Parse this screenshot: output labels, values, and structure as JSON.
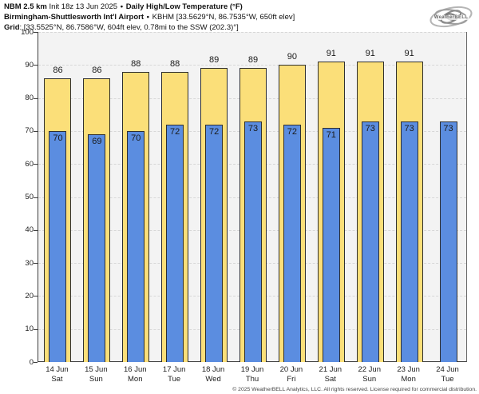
{
  "header": {
    "line1": {
      "model": "NBM 2.5 km",
      "init": "Init 18z 13 Jun 2025",
      "sep": "•",
      "product": "Daily High/Low Temperature (°F)"
    },
    "line2": {
      "station": "Birmingham-Shuttlesworth Int'l Airport",
      "sep": "•",
      "meta": "KBHM [33.5629°N, 86.7535°W, 650ft elev]"
    },
    "line3": {
      "label": "Grid",
      "value": ": [33.5525°N, 86.7586°W, 604ft elev, 0.78mi to the SSW (202.3)°]"
    }
  },
  "logo": {
    "text": "WeatherBELL"
  },
  "chart_data": {
    "type": "bar",
    "title": "NBM 2.5 km Daily High/Low Temperature (°F) — Birmingham-Shuttlesworth Int'l Airport",
    "categories": [
      {
        "date": "14 Jun",
        "day": "Sat"
      },
      {
        "date": "15 Jun",
        "day": "Sun"
      },
      {
        "date": "16 Jun",
        "day": "Mon"
      },
      {
        "date": "17 Jun",
        "day": "Tue"
      },
      {
        "date": "18 Jun",
        "day": "Wed"
      },
      {
        "date": "19 Jun",
        "day": "Thu"
      },
      {
        "date": "20 Jun",
        "day": "Fri"
      },
      {
        "date": "21 Jun",
        "day": "Sat"
      },
      {
        "date": "22 Jun",
        "day": "Sun"
      },
      {
        "date": "23 Jun",
        "day": "Mon"
      },
      {
        "date": "24 Jun",
        "day": "Tue"
      }
    ],
    "series": [
      {
        "name": "High",
        "color": "#FBDF79",
        "values": [
          86,
          86,
          88,
          88,
          89,
          89,
          90,
          91,
          91,
          91,
          null
        ]
      },
      {
        "name": "Low",
        "color": "#5B8DE0",
        "values": [
          70,
          69,
          70,
          72,
          72,
          73,
          72,
          71,
          73,
          73,
          73
        ]
      }
    ],
    "xlabel": "",
    "ylabel": "Temperature [°F]",
    "ylim": [
      0,
      100
    ],
    "ytick_step": 10,
    "grid": "horizontal-dashed",
    "legend": "none"
  },
  "footer": {
    "copyright": "© 2025 WeatherBELL Analytics, LLC. All rights reserved. License required for commercial distribution."
  },
  "colors": {
    "high_bar": "#FBDF79",
    "low_bar": "#5B8DE0",
    "bar_border": "#2F2F2F",
    "plot_background": "#F3F3F3",
    "gridline": "#D7D7D7",
    "axis": "#3F3F3F"
  }
}
